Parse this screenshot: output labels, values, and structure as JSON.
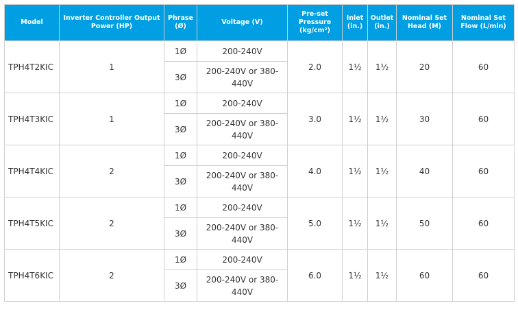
{
  "headers": {
    "model": "Model",
    "power": "Inverter Controller Output Power (HP)",
    "phrase": "Phrase (Ø)",
    "voltage": "Voltage (V)",
    "pressure": "Pre-set Pressure (kg/cm²)",
    "inlet": "Inlet (in.)",
    "outlet": "Outlet (in.)",
    "head": "Nominal Set Head (M)",
    "flow": "Nominal Set Flow (L/min)"
  },
  "rows": [
    {
      "model": "TPH4T2KIC",
      "power": "1",
      "phase1": "1Ø",
      "voltage1": "200-240V",
      "phase3": "3Ø",
      "voltage3": "200-240V or 380-440V",
      "pressure": "2.0",
      "inlet": "1½",
      "outlet": "1½",
      "head": "20",
      "flow": "60"
    },
    {
      "model": "TPH4T3KIC",
      "power": "1",
      "phase1": "1Ø",
      "voltage1": "200-240V",
      "phase3": "3Ø",
      "voltage3": "200-240V or 380-440V",
      "pressure": "3.0",
      "inlet": "1½",
      "outlet": "1½",
      "head": "30",
      "flow": "60"
    },
    {
      "model": "TPH4T4KIC",
      "power": "2",
      "phase1": "1Ø",
      "voltage1": "200-240V",
      "phase3": "3Ø",
      "voltage3": "200-240V or 380-440V",
      "pressure": "4.0",
      "inlet": "1½",
      "outlet": "1½",
      "head": "40",
      "flow": "60"
    },
    {
      "model": "TPH4T5KIC",
      "power": "2",
      "phase1": "1Ø",
      "voltage1": "200-240V",
      "phase3": "3Ø",
      "voltage3": "200-240V or 380-440V",
      "pressure": "5.0",
      "inlet": "1½",
      "outlet": "1½",
      "head": "50",
      "flow": "60"
    },
    {
      "model": "TPH4T6KIC",
      "power": "2",
      "phase1": "1Ø",
      "voltage1": "200-240V",
      "phase3": "3Ø",
      "voltage3": "200-240V or 380-440V",
      "pressure": "6.0",
      "inlet": "1½",
      "outlet": "1½",
      "head": "60",
      "flow": "60"
    }
  ],
  "colors": {
    "header_bg": "#009fe3",
    "header_text": "#ffffff",
    "border": "#cfcfcf"
  }
}
